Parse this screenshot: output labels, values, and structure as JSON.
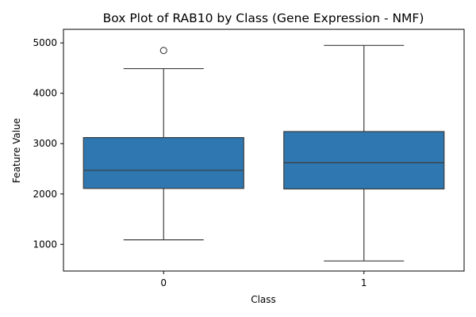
{
  "chart_data": {
    "type": "box",
    "title": "Box Plot of RAB10 by Class (Gene Expression - NMF)",
    "xlabel": "Class",
    "ylabel": "Feature Value",
    "categories": [
      "0",
      "1"
    ],
    "yticks": [
      1000,
      2000,
      3000,
      4000,
      5000
    ],
    "ylim": [
      470,
      5270
    ],
    "grid": false,
    "color": "#2e77b0",
    "line_color": "#3d3d3d",
    "boxes": [
      {
        "category": "0",
        "whisker_low": 1090,
        "q1": 2110,
        "median": 2470,
        "q3": 3120,
        "whisker_high": 4490,
        "outliers": [
          4850
        ]
      },
      {
        "category": "1",
        "whisker_low": 670,
        "q1": 2100,
        "median": 2620,
        "q3": 3240,
        "whisker_high": 4950,
        "outliers": []
      }
    ]
  }
}
